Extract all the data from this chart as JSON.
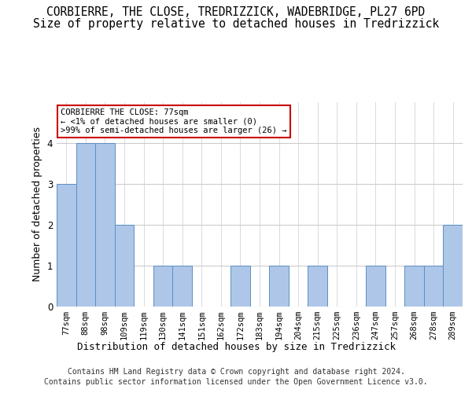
{
  "title_line1": "CORBIERRE, THE CLOSE, TREDRIZZICK, WADEBRIDGE, PL27 6PD",
  "title_line2": "Size of property relative to detached houses in Tredrizzick",
  "xlabel": "Distribution of detached houses by size in Tredrizzick",
  "ylabel": "Number of detached properties",
  "categories": [
    "77sqm",
    "88sqm",
    "98sqm",
    "109sqm",
    "119sqm",
    "130sqm",
    "141sqm",
    "151sqm",
    "162sqm",
    "172sqm",
    "183sqm",
    "194sqm",
    "204sqm",
    "215sqm",
    "225sqm",
    "236sqm",
    "247sqm",
    "257sqm",
    "268sqm",
    "278sqm",
    "289sqm"
  ],
  "values": [
    3,
    4,
    4,
    2,
    0,
    1,
    1,
    0,
    0,
    1,
    0,
    1,
    0,
    1,
    0,
    0,
    1,
    0,
    1,
    1,
    2
  ],
  "bar_color": "#aec6e8",
  "bar_edge_color": "#5b8fc4",
  "annotation_title": "CORBIERRE THE CLOSE: 77sqm",
  "annotation_line2": "← <1% of detached houses are smaller (0)",
  "annotation_line3": ">99% of semi-detached houses are larger (26) →",
  "annotation_box_color": "#ffffff",
  "annotation_border_color": "#cc0000",
  "ylim": [
    0,
    5
  ],
  "yticks": [
    0,
    1,
    2,
    3,
    4
  ],
  "footer_line1": "Contains HM Land Registry data © Crown copyright and database right 2024.",
  "footer_line2": "Contains public sector information licensed under the Open Government Licence v3.0.",
  "bg_color": "#ffffff",
  "grid_color": "#cccccc",
  "title_fontsize": 10.5,
  "subtitle_fontsize": 10.5,
  "tick_fontsize": 7.5,
  "ylabel_fontsize": 9,
  "xlabel_fontsize": 9,
  "footer_fontsize": 7
}
